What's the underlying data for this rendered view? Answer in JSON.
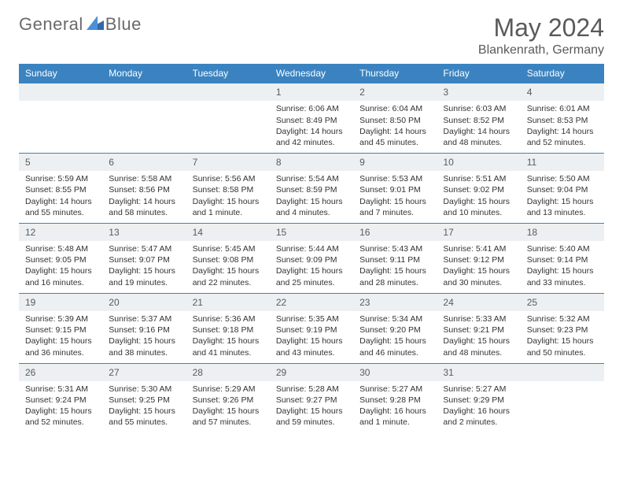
{
  "brand": {
    "name1": "General",
    "name2": "Blue"
  },
  "title": "May 2024",
  "location": "Blankenrath, Germany",
  "header_color": "#3b83c0",
  "row_sep_color": "#3b83c0",
  "daynum_bg": "#edf0f2",
  "text_color": "#333333",
  "weekdays": [
    "Sunday",
    "Monday",
    "Tuesday",
    "Wednesday",
    "Thursday",
    "Friday",
    "Saturday"
  ],
  "weeks": [
    [
      null,
      null,
      null,
      {
        "n": "1",
        "sr": "Sunrise: 6:06 AM",
        "ss": "Sunset: 8:49 PM",
        "dl": "Daylight: 14 hours and 42 minutes."
      },
      {
        "n": "2",
        "sr": "Sunrise: 6:04 AM",
        "ss": "Sunset: 8:50 PM",
        "dl": "Daylight: 14 hours and 45 minutes."
      },
      {
        "n": "3",
        "sr": "Sunrise: 6:03 AM",
        "ss": "Sunset: 8:52 PM",
        "dl": "Daylight: 14 hours and 48 minutes."
      },
      {
        "n": "4",
        "sr": "Sunrise: 6:01 AM",
        "ss": "Sunset: 8:53 PM",
        "dl": "Daylight: 14 hours and 52 minutes."
      }
    ],
    [
      {
        "n": "5",
        "sr": "Sunrise: 5:59 AM",
        "ss": "Sunset: 8:55 PM",
        "dl": "Daylight: 14 hours and 55 minutes."
      },
      {
        "n": "6",
        "sr": "Sunrise: 5:58 AM",
        "ss": "Sunset: 8:56 PM",
        "dl": "Daylight: 14 hours and 58 minutes."
      },
      {
        "n": "7",
        "sr": "Sunrise: 5:56 AM",
        "ss": "Sunset: 8:58 PM",
        "dl": "Daylight: 15 hours and 1 minute."
      },
      {
        "n": "8",
        "sr": "Sunrise: 5:54 AM",
        "ss": "Sunset: 8:59 PM",
        "dl": "Daylight: 15 hours and 4 minutes."
      },
      {
        "n": "9",
        "sr": "Sunrise: 5:53 AM",
        "ss": "Sunset: 9:01 PM",
        "dl": "Daylight: 15 hours and 7 minutes."
      },
      {
        "n": "10",
        "sr": "Sunrise: 5:51 AM",
        "ss": "Sunset: 9:02 PM",
        "dl": "Daylight: 15 hours and 10 minutes."
      },
      {
        "n": "11",
        "sr": "Sunrise: 5:50 AM",
        "ss": "Sunset: 9:04 PM",
        "dl": "Daylight: 15 hours and 13 minutes."
      }
    ],
    [
      {
        "n": "12",
        "sr": "Sunrise: 5:48 AM",
        "ss": "Sunset: 9:05 PM",
        "dl": "Daylight: 15 hours and 16 minutes."
      },
      {
        "n": "13",
        "sr": "Sunrise: 5:47 AM",
        "ss": "Sunset: 9:07 PM",
        "dl": "Daylight: 15 hours and 19 minutes."
      },
      {
        "n": "14",
        "sr": "Sunrise: 5:45 AM",
        "ss": "Sunset: 9:08 PM",
        "dl": "Daylight: 15 hours and 22 minutes."
      },
      {
        "n": "15",
        "sr": "Sunrise: 5:44 AM",
        "ss": "Sunset: 9:09 PM",
        "dl": "Daylight: 15 hours and 25 minutes."
      },
      {
        "n": "16",
        "sr": "Sunrise: 5:43 AM",
        "ss": "Sunset: 9:11 PM",
        "dl": "Daylight: 15 hours and 28 minutes."
      },
      {
        "n": "17",
        "sr": "Sunrise: 5:41 AM",
        "ss": "Sunset: 9:12 PM",
        "dl": "Daylight: 15 hours and 30 minutes."
      },
      {
        "n": "18",
        "sr": "Sunrise: 5:40 AM",
        "ss": "Sunset: 9:14 PM",
        "dl": "Daylight: 15 hours and 33 minutes."
      }
    ],
    [
      {
        "n": "19",
        "sr": "Sunrise: 5:39 AM",
        "ss": "Sunset: 9:15 PM",
        "dl": "Daylight: 15 hours and 36 minutes."
      },
      {
        "n": "20",
        "sr": "Sunrise: 5:37 AM",
        "ss": "Sunset: 9:16 PM",
        "dl": "Daylight: 15 hours and 38 minutes."
      },
      {
        "n": "21",
        "sr": "Sunrise: 5:36 AM",
        "ss": "Sunset: 9:18 PM",
        "dl": "Daylight: 15 hours and 41 minutes."
      },
      {
        "n": "22",
        "sr": "Sunrise: 5:35 AM",
        "ss": "Sunset: 9:19 PM",
        "dl": "Daylight: 15 hours and 43 minutes."
      },
      {
        "n": "23",
        "sr": "Sunrise: 5:34 AM",
        "ss": "Sunset: 9:20 PM",
        "dl": "Daylight: 15 hours and 46 minutes."
      },
      {
        "n": "24",
        "sr": "Sunrise: 5:33 AM",
        "ss": "Sunset: 9:21 PM",
        "dl": "Daylight: 15 hours and 48 minutes."
      },
      {
        "n": "25",
        "sr": "Sunrise: 5:32 AM",
        "ss": "Sunset: 9:23 PM",
        "dl": "Daylight: 15 hours and 50 minutes."
      }
    ],
    [
      {
        "n": "26",
        "sr": "Sunrise: 5:31 AM",
        "ss": "Sunset: 9:24 PM",
        "dl": "Daylight: 15 hours and 52 minutes."
      },
      {
        "n": "27",
        "sr": "Sunrise: 5:30 AM",
        "ss": "Sunset: 9:25 PM",
        "dl": "Daylight: 15 hours and 55 minutes."
      },
      {
        "n": "28",
        "sr": "Sunrise: 5:29 AM",
        "ss": "Sunset: 9:26 PM",
        "dl": "Daylight: 15 hours and 57 minutes."
      },
      {
        "n": "29",
        "sr": "Sunrise: 5:28 AM",
        "ss": "Sunset: 9:27 PM",
        "dl": "Daylight: 15 hours and 59 minutes."
      },
      {
        "n": "30",
        "sr": "Sunrise: 5:27 AM",
        "ss": "Sunset: 9:28 PM",
        "dl": "Daylight: 16 hours and 1 minute."
      },
      {
        "n": "31",
        "sr": "Sunrise: 5:27 AM",
        "ss": "Sunset: 9:29 PM",
        "dl": "Daylight: 16 hours and 2 minutes."
      },
      null
    ]
  ]
}
